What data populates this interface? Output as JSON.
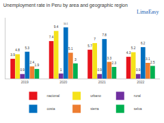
{
  "chart_data": {
    "type": "bar",
    "title": "Unemployment rate in Peru by area and geographic region",
    "categories": [
      "2019",
      "2020",
      "2021",
      "2022"
    ],
    "series": [
      {
        "name": "nacional",
        "color": "#e8141c",
        "values": [
          3.9,
          7.4,
          5.7,
          4.3
        ]
      },
      {
        "name": "urbano",
        "color": "#f5e21a",
        "values": [
          4.8,
          9.4,
          7,
          5.2
        ]
      },
      {
        "name": "rural",
        "color": "#7030a0",
        "values": [
          0.9,
          1,
          0.9,
          0.9
        ]
      },
      {
        "name": "costa",
        "color": "#0070c0",
        "values": [
          5.3,
          10.1,
          7.8,
          6.2
        ]
      },
      {
        "name": "sierra",
        "color": "#ed7d31",
        "values": [
          2.4,
          5.1,
          3.3,
          3.1
        ]
      },
      {
        "name": "selva",
        "color": "#00b050",
        "values": [
          1.9,
          3,
          2.3,
          2.5
        ]
      }
    ],
    "annotations": [
      "LimaEasy"
    ],
    "ylim": [
      0,
      12
    ],
    "tick_labels": "x",
    "data_labels": true,
    "legend": "bottom",
    "grid": false
  }
}
